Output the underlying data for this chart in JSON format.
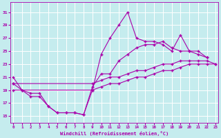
{
  "xlabel": "Windchill (Refroidissement éolien,°C)",
  "background_color": "#c5ecee",
  "grid_color": "#ffffff",
  "line_color": "#aa00aa",
  "x_ticks": [
    0,
    1,
    2,
    3,
    4,
    5,
    6,
    7,
    8,
    9,
    10,
    11,
    12,
    13,
    14,
    15,
    16,
    17,
    18,
    19,
    20,
    21,
    22,
    23
  ],
  "y_ticks": [
    15,
    17,
    19,
    21,
    23,
    25,
    27,
    29,
    31
  ],
  "xlim": [
    -0.3,
    23.3
  ],
  "ylim": [
    14.0,
    32.5
  ],
  "series": [
    {
      "x": [
        0,
        1,
        2,
        3,
        4,
        5,
        6,
        7,
        8,
        9,
        10,
        11,
        12,
        13,
        14,
        15,
        16,
        17,
        18,
        19,
        20,
        21,
        22
      ],
      "y": [
        21,
        19,
        18.5,
        18.5,
        16.5,
        15.5,
        15.5,
        15.5,
        15.2,
        19,
        24.5,
        27,
        29,
        31,
        27,
        26.5,
        26.5,
        26,
        25,
        27.5,
        25,
        25,
        24
      ]
    },
    {
      "x": [
        0,
        1,
        2,
        3,
        4,
        5,
        6,
        7,
        8,
        9,
        10,
        11,
        12,
        13,
        14,
        15,
        16,
        17,
        18,
        19,
        20,
        21,
        22
      ],
      "y": [
        20,
        19,
        18.0,
        18.0,
        16.5,
        15.5,
        15.5,
        15.5,
        15.2,
        19.5,
        21.5,
        21.5,
        23.5,
        24.5,
        25.5,
        26,
        26,
        26.5,
        25.5,
        25,
        25,
        24.5,
        24
      ]
    },
    {
      "x": [
        0,
        9,
        10,
        11,
        12,
        13,
        14,
        15,
        16,
        17,
        18,
        19,
        20,
        21,
        22,
        23
      ],
      "y": [
        20,
        20,
        20.5,
        21,
        21,
        21.5,
        22,
        22,
        22.5,
        23,
        23,
        23.5,
        23.5,
        23.5,
        23.5,
        23
      ]
    },
    {
      "x": [
        0,
        9,
        10,
        11,
        12,
        13,
        14,
        15,
        16,
        17,
        18,
        19,
        20,
        21,
        22,
        23
      ],
      "y": [
        19,
        19,
        19.5,
        20,
        20,
        20.5,
        21,
        21,
        21.5,
        22,
        22,
        22.5,
        23,
        23,
        23,
        23
      ]
    }
  ]
}
